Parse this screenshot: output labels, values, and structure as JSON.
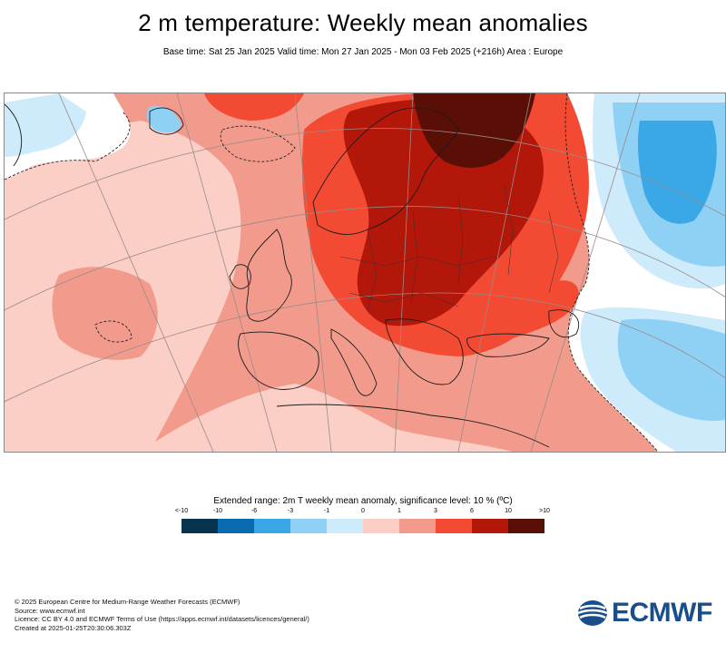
{
  "title": "2 m temperature: Weekly mean anomalies",
  "subtitle": "Base time: Sat 25 Jan 2025 Valid time: Mon 27 Jan 2025 - Mon 03 Feb 2025 (+216h) Area : Europe",
  "legend": {
    "title": "Extended range: 2m T weekly mean anomaly, significance level: 10 % (ºC)",
    "ticks": [
      "<-10",
      "-10",
      "-6",
      "-3",
      "-1",
      "0",
      "1",
      "3",
      "6",
      "10",
      ">10"
    ],
    "colors": [
      "#08334f",
      "#0a6bb0",
      "#3aa8e6",
      "#8fd0f5",
      "#cdebfa",
      "#fbcfc6",
      "#f29b8c",
      "#f24a33",
      "#b3170a",
      "#5a0f06"
    ]
  },
  "footer": [
    "© 2025 European Centre for Medium-Range Weather Forecasts (ECMWF)",
    "Source: www.ecmwf.int",
    "Licence: CC BY 4.0 and ECMWF Terms of Use (https://apps.ecmwf.int/datasets/licences/general/)",
    "Created at 2025-01-25T20:30:06.303Z"
  ],
  "logo_text": "ECMWF",
  "palette": {
    "very_light_red": "#fbcfc6",
    "light_red": "#f29b8c",
    "red": "#f24a33",
    "dark_red": "#b3170a",
    "darkest_red": "#5a0f06",
    "white": "#ffffff",
    "light_blue": "#cdebfa",
    "mid_blue": "#8fd0f5",
    "blue": "#3aa8e6"
  }
}
